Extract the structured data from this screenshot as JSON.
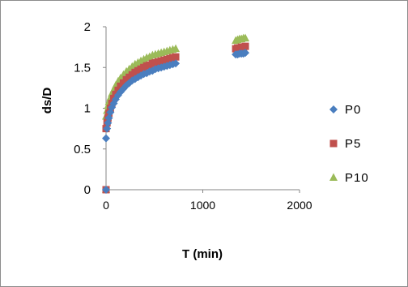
{
  "chart_data": {
    "type": "scatter",
    "title": "",
    "xlabel": "T (min)",
    "ylabel": "ds/D",
    "xlim": [
      0,
      2000
    ],
    "ylim": [
      0,
      2
    ],
    "x_ticks": [
      "0",
      "1000",
      "2000"
    ],
    "y_ticks": [
      "0",
      "0.5",
      "1",
      "1.5",
      "2"
    ],
    "grid": false,
    "legend_position": "right",
    "series": [
      {
        "name": "P0",
        "color": "#4a7ebf",
        "marker": "diamond",
        "x": [
          0,
          0,
          10,
          20,
          30,
          45,
          60,
          80,
          100,
          125,
          150,
          180,
          210,
          240,
          270,
          300,
          330,
          360,
          390,
          420,
          450,
          480,
          510,
          540,
          570,
          600,
          630,
          660,
          690,
          720,
          1340,
          1360,
          1380,
          1400,
          1420,
          1440
        ],
        "y": [
          0,
          0.63,
          0.75,
          0.82,
          0.88,
          0.95,
          1.01,
          1.06,
          1.11,
          1.16,
          1.2,
          1.24,
          1.28,
          1.31,
          1.34,
          1.36,
          1.38,
          1.4,
          1.42,
          1.43,
          1.45,
          1.46,
          1.48,
          1.49,
          1.5,
          1.51,
          1.52,
          1.53,
          1.54,
          1.55,
          1.66,
          1.66,
          1.67,
          1.67,
          1.67,
          1.68
        ]
      },
      {
        "name": "P5",
        "color": "#c0504d",
        "marker": "square",
        "x": [
          0,
          0,
          10,
          20,
          30,
          45,
          60,
          80,
          100,
          125,
          150,
          180,
          210,
          240,
          270,
          300,
          330,
          360,
          390,
          420,
          450,
          480,
          510,
          540,
          570,
          600,
          630,
          660,
          690,
          720,
          1340,
          1360,
          1380,
          1400,
          1420,
          1440
        ],
        "y": [
          0,
          0.75,
          0.82,
          0.88,
          0.94,
          1.0,
          1.06,
          1.12,
          1.17,
          1.22,
          1.27,
          1.31,
          1.35,
          1.38,
          1.41,
          1.44,
          1.46,
          1.48,
          1.5,
          1.52,
          1.53,
          1.55,
          1.56,
          1.57,
          1.58,
          1.59,
          1.6,
          1.61,
          1.62,
          1.63,
          1.73,
          1.74,
          1.74,
          1.75,
          1.75,
          1.76
        ]
      },
      {
        "name": "P10",
        "color": "#9bbb59",
        "marker": "triangle",
        "x": [
          0,
          0,
          10,
          20,
          30,
          45,
          60,
          80,
          100,
          125,
          150,
          180,
          210,
          240,
          270,
          300,
          330,
          360,
          390,
          420,
          450,
          480,
          510,
          540,
          570,
          600,
          630,
          660,
          690,
          720,
          1340,
          1360,
          1380,
          1400,
          1420,
          1440
        ],
        "y": [
          0,
          0.9,
          0.97,
          1.03,
          1.08,
          1.13,
          1.18,
          1.23,
          1.28,
          1.33,
          1.37,
          1.41,
          1.45,
          1.48,
          1.51,
          1.54,
          1.56,
          1.58,
          1.6,
          1.62,
          1.63,
          1.65,
          1.66,
          1.67,
          1.68,
          1.69,
          1.7,
          1.71,
          1.72,
          1.73,
          1.83,
          1.84,
          1.85,
          1.85,
          1.86,
          1.86
        ]
      }
    ]
  }
}
